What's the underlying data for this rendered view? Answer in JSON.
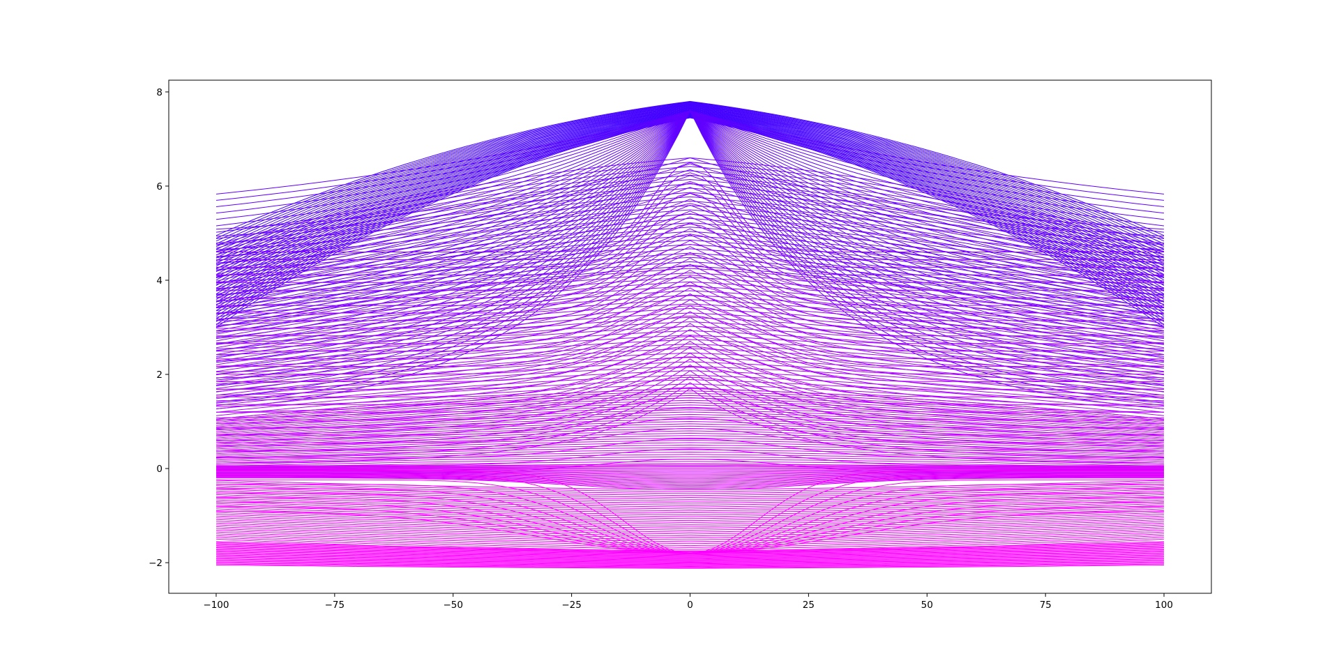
{
  "chart_data": {
    "type": "line",
    "title": "",
    "xlabel": "",
    "ylabel": "",
    "xlim": [
      -110,
      110
    ],
    "ylim": [
      -2.65,
      8.25
    ],
    "x_ticks": [
      -100,
      -75,
      -50,
      -25,
      0,
      25,
      50,
      75,
      100
    ],
    "x_tick_labels": [
      "−100",
      "−75",
      "−50",
      "−25",
      "0",
      "25",
      "50",
      "75",
      "100"
    ],
    "y_ticks": [
      -2,
      0,
      2,
      4,
      6,
      8
    ],
    "y_tick_labels": [
      "−2",
      "0",
      "2",
      "4",
      "6",
      "8"
    ],
    "grid": false,
    "legend": "none",
    "x_range": [
      -100,
      100
    ],
    "family_description": "Dense family of several hundred line series spanning x = -100 to 100, colored on a gradient from blue (top) to magenta (bottom).",
    "series_groups": [
      {
        "peak_at_0": 7.8,
        "value_at_edges": 4.95,
        "shape": "concave arch"
      },
      {
        "peak_at_0": 6.6,
        "value_at_edges": 4.75,
        "shape": "arch"
      },
      {
        "peak_at_0": 4.25,
        "value_at_edges": 3.0,
        "shape": "arch"
      },
      {
        "peak_at_0": 1.7,
        "value_at_edges": 1.05,
        "shape": "arch"
      },
      {
        "peak_at_0": 0.0,
        "value_at_edges": 0.0,
        "shape": "near flat"
      },
      {
        "peak_at_0": -0.45,
        "value_at_edges": -0.2,
        "shape": "shallow dip"
      },
      {
        "peak_at_0": -1.8,
        "value_at_edges": -0.95,
        "shape": "dip"
      },
      {
        "peak_at_0": -2.1,
        "value_at_edges": -2.05,
        "shape": "near flat"
      }
    ],
    "colors": {
      "top": "#3300ff",
      "bottom": "#ff00ff"
    }
  }
}
